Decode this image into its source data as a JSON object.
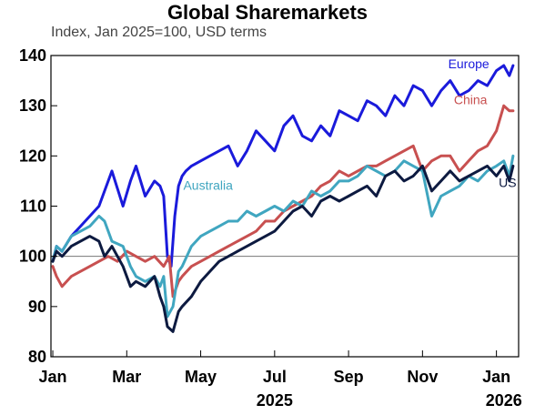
{
  "chart_data": {
    "type": "line",
    "title": "Global Sharemarkets",
    "subtitle": "Index, Jan 2025=100, USD terms",
    "ylim": [
      80,
      140
    ],
    "yticks": [
      80,
      90,
      100,
      110,
      120,
      130,
      140
    ],
    "reference_line": 100,
    "x_ticks": [
      {
        "label": "Jan",
        "x": 0
      },
      {
        "label": "Mar",
        "x": 2
      },
      {
        "label": "May",
        "x": 4
      },
      {
        "label": "Jul",
        "x": 6
      },
      {
        "label": "Sep",
        "x": 8
      },
      {
        "label": "Nov",
        "x": 10
      },
      {
        "label": "Jan",
        "x": 12
      }
    ],
    "year_labels": [
      {
        "label": "2025",
        "x": 6
      },
      {
        "label": "2026",
        "x": 12.2
      }
    ],
    "xlim": [
      -0.05,
      12.6
    ],
    "grid": false,
    "series": [
      {
        "name": "Europe",
        "color": "#1a1adb",
        "label_pos": [
          11.25,
          137.5
        ],
        "x": [
          0,
          0.1,
          0.25,
          0.5,
          0.75,
          1.0,
          1.25,
          1.4,
          1.6,
          1.9,
          2.1,
          2.25,
          2.5,
          2.75,
          2.9,
          3.0,
          3.1,
          3.2,
          3.3,
          3.4,
          3.5,
          3.6,
          3.75,
          4.0,
          4.25,
          4.5,
          4.75,
          5.0,
          5.25,
          5.5,
          5.75,
          6.0,
          6.25,
          6.5,
          6.75,
          7.0,
          7.25,
          7.5,
          7.75,
          8.0,
          8.25,
          8.5,
          8.75,
          9.0,
          9.25,
          9.5,
          9.75,
          10.0,
          10.25,
          10.5,
          10.75,
          11.0,
          11.25,
          11.5,
          11.75,
          12.0,
          12.2,
          12.35,
          12.45
        ],
        "y": [
          99,
          102,
          101,
          104,
          106,
          108,
          110,
          113,
          117,
          110,
          115,
          118,
          112,
          115,
          114,
          112,
          100,
          98,
          108,
          114,
          116,
          117,
          118,
          119,
          120,
          121,
          122,
          118,
          121,
          125,
          123,
          121,
          126,
          128,
          124,
          123,
          126,
          124,
          129,
          128,
          127,
          131,
          130,
          128,
          132,
          130,
          134,
          133,
          130,
          133,
          135,
          132,
          133,
          135,
          134,
          137,
          138,
          136,
          138
        ]
      },
      {
        "name": "China",
        "color": "#c85050",
        "label_pos": [
          11.3,
          130.3
        ],
        "x": [
          0,
          0.1,
          0.25,
          0.5,
          0.75,
          1.0,
          1.25,
          1.5,
          1.75,
          2.0,
          2.25,
          2.5,
          2.75,
          3.0,
          3.15,
          3.25,
          3.4,
          3.5,
          3.75,
          4.0,
          4.25,
          4.5,
          4.75,
          5.0,
          5.25,
          5.5,
          5.75,
          6.0,
          6.25,
          6.5,
          6.75,
          7.0,
          7.25,
          7.5,
          7.75,
          8.0,
          8.25,
          8.5,
          8.75,
          9.0,
          9.25,
          9.5,
          9.75,
          10.0,
          10.25,
          10.5,
          10.75,
          11.0,
          11.25,
          11.5,
          11.75,
          12.0,
          12.2,
          12.35,
          12.45
        ],
        "y": [
          98,
          96,
          94,
          96,
          97,
          98,
          99,
          100,
          99,
          101,
          100,
          99,
          100,
          98,
          100,
          92,
          95,
          96,
          98,
          99,
          100,
          101,
          102,
          103,
          104,
          105,
          107,
          107,
          109,
          110,
          111,
          112,
          114,
          115,
          117,
          116,
          117,
          118,
          118,
          119,
          120,
          121,
          122,
          117,
          119,
          120,
          120,
          117,
          119,
          121,
          122,
          125,
          130,
          129,
          129
        ]
      },
      {
        "name": "Australia",
        "color": "#40a6c0",
        "label_pos": [
          4.2,
          113.3
        ],
        "x": [
          0,
          0.1,
          0.25,
          0.5,
          0.75,
          1.0,
          1.25,
          1.4,
          1.6,
          1.9,
          2.1,
          2.25,
          2.5,
          2.75,
          2.9,
          3.0,
          3.1,
          3.25,
          3.4,
          3.5,
          3.75,
          4.0,
          4.25,
          4.5,
          4.75,
          5.0,
          5.25,
          5.5,
          5.75,
          6.0,
          6.25,
          6.5,
          6.75,
          7.0,
          7.25,
          7.5,
          7.75,
          8.0,
          8.25,
          8.5,
          8.75,
          9.0,
          9.25,
          9.5,
          9.75,
          10.0,
          10.25,
          10.5,
          10.75,
          11.0,
          11.25,
          11.5,
          11.75,
          12.0,
          12.2,
          12.35,
          12.45
        ],
        "y": [
          99,
          102,
          101,
          104,
          105,
          106,
          108,
          107,
          103,
          102,
          98,
          96,
          95,
          96,
          94,
          96,
          88,
          90,
          97,
          98,
          102,
          104,
          105,
          106,
          107,
          107,
          109,
          108,
          109,
          110,
          109,
          111,
          110,
          113,
          112,
          113,
          115,
          115,
          116,
          118,
          117,
          116,
          117,
          119,
          118,
          117,
          108,
          112,
          113,
          114,
          116,
          115,
          117,
          118,
          119,
          116,
          120
        ]
      },
      {
        "name": "US",
        "color": "#0d1a40",
        "label_pos": [
          12.3,
          113.8
        ],
        "x": [
          0,
          0.1,
          0.25,
          0.5,
          0.75,
          1.0,
          1.25,
          1.4,
          1.6,
          1.9,
          2.1,
          2.25,
          2.5,
          2.75,
          2.9,
          3.0,
          3.1,
          3.25,
          3.4,
          3.5,
          3.75,
          4.0,
          4.25,
          4.5,
          4.75,
          5.0,
          5.25,
          5.5,
          5.75,
          6.0,
          6.25,
          6.5,
          6.75,
          7.0,
          7.25,
          7.5,
          7.75,
          8.0,
          8.25,
          8.5,
          8.75,
          9.0,
          9.25,
          9.5,
          9.75,
          10.0,
          10.25,
          10.5,
          10.75,
          11.0,
          11.25,
          11.5,
          11.75,
          12.0,
          12.2,
          12.35,
          12.45
        ],
        "y": [
          99,
          101,
          100,
          102,
          103,
          104,
          103,
          100,
          102,
          98,
          94,
          95,
          94,
          96,
          92,
          90,
          86,
          85,
          89,
          90,
          92,
          95,
          97,
          99,
          100,
          101,
          102,
          103,
          104,
          105,
          107,
          109,
          110,
          108,
          111,
          112,
          111,
          112,
          113,
          114,
          112,
          116,
          117,
          115,
          116,
          118,
          113,
          115,
          117,
          115,
          116,
          117,
          118,
          116,
          118,
          115,
          118
        ]
      }
    ]
  }
}
